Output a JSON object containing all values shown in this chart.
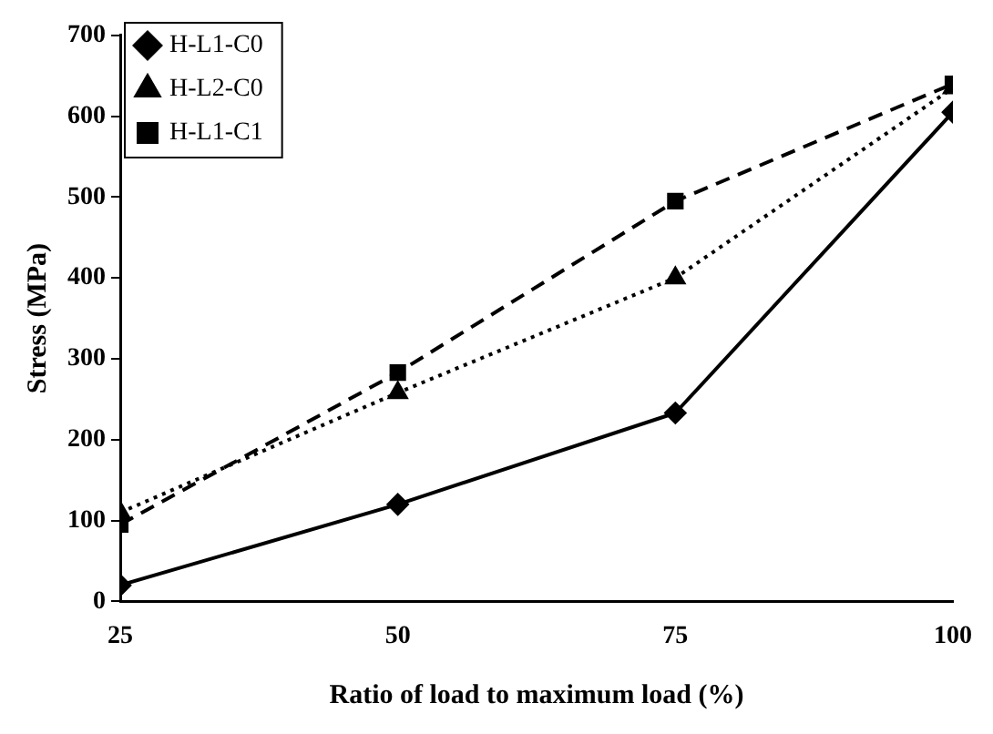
{
  "chart_data": {
    "type": "line",
    "xlabel": "Ratio of load to maximum load (%)",
    "ylabel": "Stress (MPa)",
    "x": [
      25,
      50,
      75,
      100
    ],
    "series": [
      {
        "name": "H-L1-C0",
        "color": "#000000",
        "marker": "diamond",
        "line_style": "solid",
        "values": [
          20,
          120,
          233,
          605
        ]
      },
      {
        "name": "H-L2-C0",
        "color": "#000000",
        "marker": "triangle",
        "line_style": "dotted",
        "values": [
          110,
          258,
          400,
          635
        ]
      },
      {
        "name": "H-L1-C1",
        "color": "#000000",
        "marker": "square",
        "line_style": "dashed",
        "values": [
          95,
          283,
          495,
          640
        ]
      }
    ],
    "xlim": [
      25,
      100
    ],
    "xticks": [
      25,
      50,
      75,
      100
    ],
    "ylim": [
      0,
      700
    ],
    "yticks": [
      0,
      100,
      200,
      300,
      400,
      500,
      600,
      700
    ],
    "grid": false,
    "legend": "top left"
  }
}
